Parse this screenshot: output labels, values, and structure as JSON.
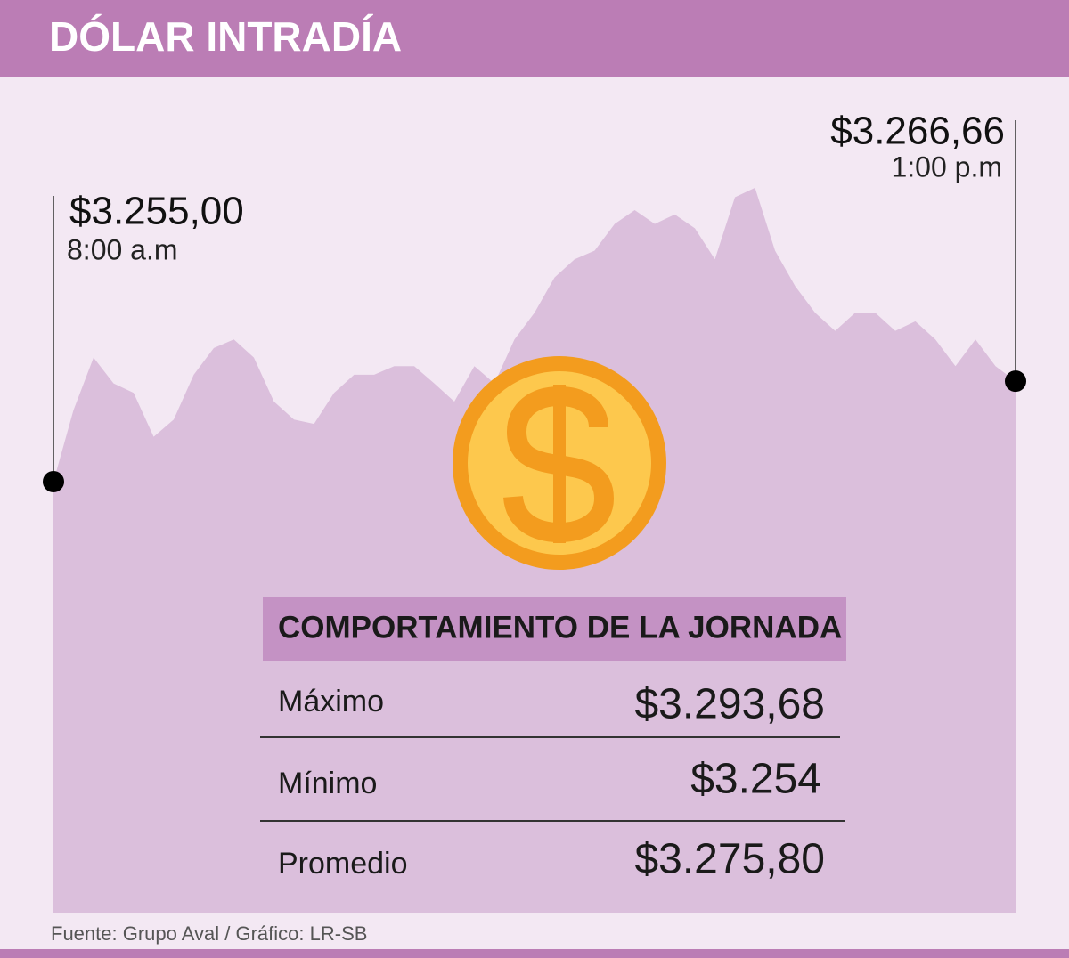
{
  "chart_data": {
    "type": "area",
    "title": "DÓLAR INTRADÍA",
    "color": "#dbbfdc",
    "ylim": [
      3205,
      3302
    ],
    "values": [
      3255,
      3263.3,
      3269.4,
      3266.4,
      3265.3,
      3260.2,
      3262.2,
      3267.4,
      3270.5,
      3271.5,
      3269.4,
      3264.3,
      3262.2,
      3261.7,
      3265.3,
      3267.4,
      3267.4,
      3268.4,
      3268.4,
      3266.4,
      3264.3,
      3268.4,
      3266.4,
      3271.5,
      3274.6,
      3278.7,
      3280.8,
      3281.8,
      3284.9,
      3286.5,
      3284.9,
      3286.0,
      3284.4,
      3280.8,
      3288.0,
      3289.1,
      3281.8,
      3277.7,
      3274.6,
      3272.5,
      3274.6,
      3274.6,
      3272.5,
      3273.6,
      3271.5,
      3268.4,
      3271.5,
      3268.4,
      3266.66
    ],
    "start": {
      "label": "$3.255,00",
      "time": "8:00 a.m"
    },
    "end": {
      "label": "$3.266,66",
      "time": "1:00 p.m"
    }
  },
  "table": {
    "header": "COMPORTAMIENTO DE LA JORNADA",
    "rows": [
      [
        "Máximo",
        "$3.293,68"
      ],
      [
        "Mínimo",
        "$3.254"
      ],
      [
        "Promedio",
        "$3.275,80"
      ]
    ]
  },
  "source": "Fuente: Grupo Aval / Gráfico: LR-SB"
}
